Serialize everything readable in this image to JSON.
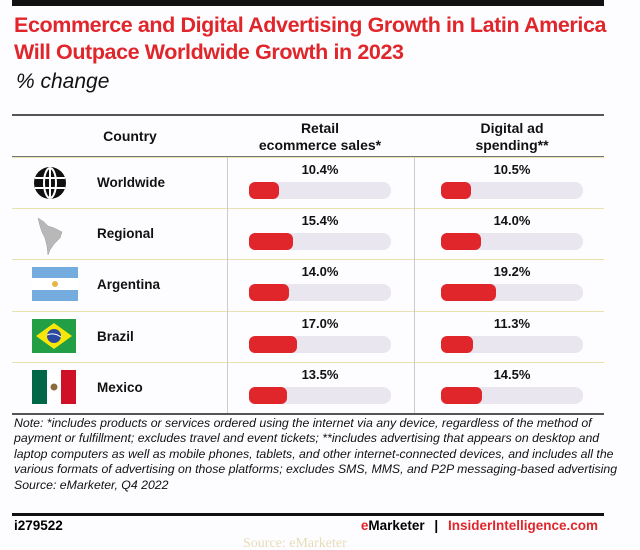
{
  "chart_data": {
    "type": "table",
    "title": "Ecommerce and Digital Advertising Growth in Latin America Will Outpace Worldwide Growth in 2023",
    "subtitle": "% change",
    "columns": [
      "Country",
      "Retail ecommerce sales*",
      "Digital ad spending**"
    ],
    "header": {
      "country": "Country",
      "retail_l1": "Retail",
      "retail_l2": "ecommerce sales*",
      "ad_l1": "Digital ad",
      "ad_l2": "spending**"
    },
    "scale_max": 50,
    "rows": [
      {
        "country": "Worldwide",
        "icon": "globe-icon",
        "retail": 10.4,
        "retail_label": "10.4%",
        "ad": 10.5,
        "ad_label": "10.5%"
      },
      {
        "country": "Regional",
        "icon": "latin-america-map-icon",
        "retail": 15.4,
        "retail_label": "15.4%",
        "ad": 14.0,
        "ad_label": "14.0%"
      },
      {
        "country": "Argentina",
        "icon": "argentina-flag-icon",
        "retail": 14.0,
        "retail_label": "14.0%",
        "ad": 19.2,
        "ad_label": "19.2%"
      },
      {
        "country": "Brazil",
        "icon": "brazil-flag-icon",
        "retail": 17.0,
        "retail_label": "17.0%",
        "ad": 11.3,
        "ad_label": "11.3%"
      },
      {
        "country": "Mexico",
        "icon": "mexico-flag-icon",
        "retail": 13.5,
        "retail_label": "13.5%",
        "ad": 14.5,
        "ad_label": "14.5%"
      }
    ],
    "colors": {
      "accent": "#e0262b",
      "track": "#e9e6ef"
    }
  },
  "note": "Note: *includes products or services ordered using the internet via any device, regardless of the method of payment or fulfillment; excludes travel and event tickets; **includes advertising that appears on desktop and laptop computers as well as mobile phones, tablets, and other internet-connected devices, and includes all the various formats of advertising on those platforms; excludes SMS, MMS, and P2P messaging-based advertising",
  "source": "Source: eMarketer, Q4 2022",
  "footer": {
    "id": "i279522",
    "brand_e": "e",
    "brand_rest": "Marketer",
    "sep": "|",
    "site": "InsiderIntelligence.com"
  },
  "caption": "Source: eMarketer"
}
